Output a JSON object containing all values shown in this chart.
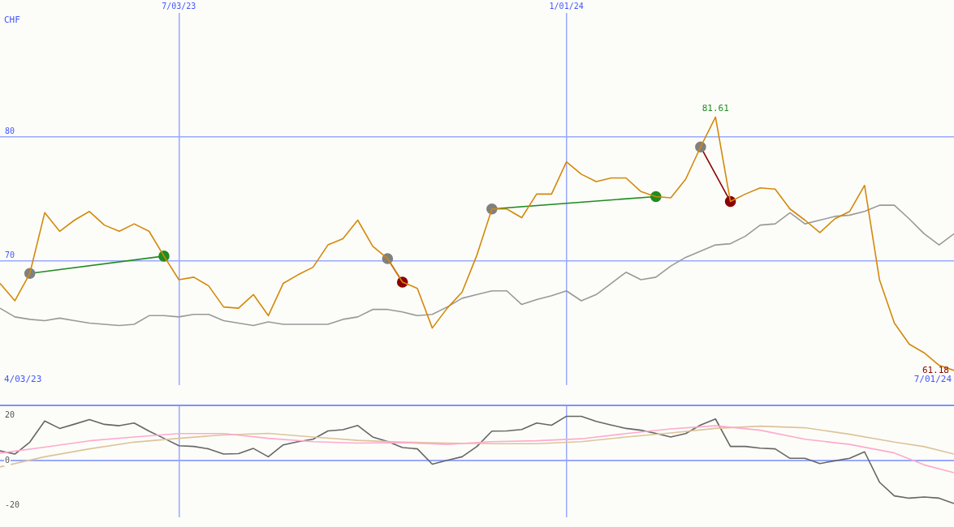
{
  "chart_data": [
    {
      "type": "line",
      "ylabel": "CHF",
      "x": [
        "2023-04-10",
        "2023-04-17",
        "2023-04-24",
        "2023-05-01",
        "2023-05-08",
        "2023-05-15",
        "2023-05-22",
        "2023-05-29",
        "2023-06-05",
        "2023-06-12",
        "2023-06-19",
        "2023-06-26",
        "2023-07-03",
        "2023-07-10",
        "2023-07-17",
        "2023-07-24",
        "2023-07-31",
        "2023-08-07",
        "2023-08-14",
        "2023-08-21",
        "2023-08-28",
        "2023-09-04",
        "2023-09-11",
        "2023-09-18",
        "2023-09-25",
        "2023-10-02",
        "2023-10-09",
        "2023-10-16",
        "2023-10-23",
        "2023-10-30",
        "2023-11-06",
        "2023-11-13",
        "2023-11-20",
        "2023-11-27",
        "2023-12-04",
        "2023-12-11",
        "2023-12-18",
        "2023-12-25",
        "2024-01-01",
        "2024-01-08",
        "2024-01-15",
        "2024-01-22",
        "2024-01-29",
        "2024-02-05",
        "2024-02-12",
        "2024-02-19",
        "2024-02-26",
        "2024-03-04",
        "2024-03-11",
        "2024-03-18",
        "2024-03-25",
        "2024-04-01",
        "2024-04-08",
        "2024-04-15",
        "2024-04-22",
        "2024-04-29",
        "2024-05-06",
        "2024-05-13",
        "2024-05-20",
        "2024-05-27",
        "2024-06-03",
        "2024-06-10",
        "2024-06-17",
        "2024-06-24",
        "2024-07-01"
      ],
      "series": [
        {
          "color": "#d4880a",
          "values": [
            68.2,
            66.8,
            69.0,
            73.9,
            72.4,
            73.3,
            74.0,
            72.9,
            72.4,
            73.0,
            72.4,
            70.4,
            68.5,
            68.7,
            68.0,
            66.3,
            66.2,
            67.3,
            65.6,
            68.2,
            68.9,
            69.5,
            71.3,
            71.8,
            73.3,
            71.2,
            70.2,
            68.3,
            67.8,
            64.6,
            66.2,
            67.5,
            70.5,
            74.2,
            74.2,
            73.5,
            75.4,
            75.4,
            78.0,
            77.0,
            76.4,
            76.7,
            76.7,
            75.6,
            75.2,
            75.1,
            76.6,
            79.2,
            81.61,
            74.8,
            75.4,
            75.9,
            75.8,
            74.2,
            73.3,
            72.3,
            73.4,
            74.0,
            76.1,
            68.5,
            65.0,
            63.3,
            62.6,
            61.6,
            61.18
          ]
        },
        {
          "color": "#999999",
          "values": [
            66.2,
            65.5,
            65.3,
            65.2,
            65.4,
            65.2,
            65.0,
            64.9,
            64.8,
            64.9,
            65.6,
            65.6,
            65.5,
            65.7,
            65.7,
            65.2,
            65.0,
            64.8,
            65.1,
            64.9,
            64.9,
            64.9,
            64.9,
            65.3,
            65.5,
            66.1,
            66.1,
            65.9,
            65.6,
            65.7,
            66.3,
            67.0,
            67.3,
            67.6,
            67.6,
            66.5,
            66.9,
            67.2,
            67.6,
            66.8,
            67.3,
            68.2,
            69.1,
            68.5,
            68.7,
            69.6,
            70.3,
            70.8,
            71.3,
            71.4,
            72.0,
            72.9,
            73.0,
            73.9,
            73.0,
            73.3,
            73.6,
            73.7,
            74.0,
            74.5,
            74.5,
            73.4,
            72.2,
            71.3,
            72.2
          ]
        },
        {
          "color": "#228b22",
          "marker": "circle",
          "x": [
            "2023-04-24",
            "2023-06-26"
          ],
          "values": [
            69.0,
            70.4
          ],
          "colors": [
            "#808080",
            "#228b22"
          ]
        },
        {
          "color": "#8b0000",
          "marker": "circle",
          "x": [
            "2023-10-09",
            "2023-10-16"
          ],
          "values": [
            70.2,
            68.3
          ],
          "colors": [
            "#808080",
            "#8b0000"
          ]
        },
        {
          "color": "#228b22",
          "marker": "circle",
          "x": [
            "2023-11-27",
            "2024-02-12"
          ],
          "values": [
            74.2,
            75.2
          ],
          "colors": [
            "#808080",
            "#228b22"
          ]
        },
        {
          "color": "#8b0000",
          "marker": "circle",
          "x": [
            "2024-03-04",
            "2024-03-18"
          ],
          "values": [
            79.2,
            74.8
          ],
          "colors": [
            "#808080",
            "#8b0000"
          ]
        }
      ],
      "xlim": [
        "2023-04-10",
        "2024-07-01"
      ],
      "xticks": [
        {
          "value": "2023-07-03",
          "label": "7/03/23"
        },
        {
          "value": "2024-01-01",
          "label": "1/01/24"
        }
      ],
      "ylim": [
        60,
        90
      ],
      "yticks": [
        70,
        80
      ],
      "grid": true,
      "legend": false,
      "marker": "none",
      "annotations": [
        {
          "text": "81.61",
          "x": "2024-03-11",
          "y": 81.61
        },
        {
          "text": "61.18",
          "x": "2024-07-01",
          "y": 61.18
        },
        "4/03/23",
        "7/01/24"
      ]
    },
    {
      "type": "line",
      "x": [
        "2023-04-10",
        "2023-04-17",
        "2023-04-24",
        "2023-05-01",
        "2023-05-08",
        "2023-05-15",
        "2023-05-22",
        "2023-05-29",
        "2023-06-05",
        "2023-06-12",
        "2023-06-19",
        "2023-06-26",
        "2023-07-03",
        "2023-07-10",
        "2023-07-17",
        "2023-07-24",
        "2023-07-31",
        "2023-08-07",
        "2023-08-14",
        "2023-08-21",
        "2023-08-28",
        "2023-09-04",
        "2023-09-11",
        "2023-09-18",
        "2023-09-25",
        "2023-10-02",
        "2023-10-09",
        "2023-10-16",
        "2023-10-23",
        "2023-10-30",
        "2023-11-06",
        "2023-11-13",
        "2023-11-20",
        "2023-11-27",
        "2023-12-04",
        "2023-12-11",
        "2023-12-18",
        "2023-12-25",
        "2024-01-01",
        "2024-01-08",
        "2024-01-15",
        "2024-01-22",
        "2024-01-29",
        "2024-02-05",
        "2024-02-12",
        "2024-02-19",
        "2024-02-26",
        "2024-03-04",
        "2024-03-11",
        "2024-03-18",
        "2024-03-25",
        "2024-04-01",
        "2024-04-08",
        "2024-04-15",
        "2024-04-22",
        "2024-04-29",
        "2024-05-06",
        "2024-05-13",
        "2024-05-20",
        "2024-05-27",
        "2024-06-03",
        "2024-06-10",
        "2024-06-17",
        "2024-06-24",
        "2024-07-01"
      ],
      "series": [
        {
          "color": "#ffaacc",
          "x": [
            "2023-04-10",
            "2023-05-01",
            "2023-05-22",
            "2023-06-12",
            "2023-07-03",
            "2023-07-24",
            "2023-08-14",
            "2023-09-04",
            "2023-09-25",
            "2023-10-16",
            "2023-11-06",
            "2023-11-27",
            "2023-12-18",
            "2024-01-08",
            "2024-01-29",
            "2024-02-19",
            "2024-03-11",
            "2024-04-01",
            "2024-04-22",
            "2024-05-13",
            "2024-06-03",
            "2024-06-17",
            "2024-07-01"
          ],
          "values": [
            3.3,
            6.0,
            8.8,
            10.5,
            12.0,
            12.0,
            9.9,
            8.4,
            7.8,
            8.0,
            7.2,
            8.4,
            8.8,
            9.7,
            12.0,
            14.1,
            15.5,
            13.5,
            9.5,
            7.2,
            3.4,
            -1.9,
            -5.4
          ]
        },
        {
          "color": "#ddc49a",
          "x": [
            "2023-04-10",
            "2023-05-01",
            "2023-05-22",
            "2023-06-12",
            "2023-07-03",
            "2023-07-24",
            "2023-08-14",
            "2023-09-04",
            "2023-09-25",
            "2023-10-16",
            "2023-11-06",
            "2023-11-27",
            "2023-12-18",
            "2024-01-08",
            "2024-01-29",
            "2024-02-19",
            "2024-03-11",
            "2024-04-01",
            "2024-04-22",
            "2024-05-13",
            "2024-06-03",
            "2024-06-17",
            "2024-07-01"
          ],
          "values": [
            -2.8,
            1.7,
            5.2,
            8.2,
            9.9,
            11.4,
            12.1,
            10.5,
            9.0,
            8.2,
            7.8,
            7.5,
            7.5,
            8.4,
            10.5,
            12.3,
            14.3,
            15.3,
            14.6,
            11.7,
            8.2,
            6.2,
            2.9
          ]
        },
        {
          "color": "#666666",
          "values": [
            4.3,
            2.9,
            8.2,
            17.6,
            14.3,
            16.2,
            18.2,
            16.1,
            15.5,
            16.7,
            13.1,
            9.9,
            6.6,
            6.3,
            5.2,
            2.9,
            3.1,
            5.4,
            1.7,
            7.0,
            8.4,
            9.5,
            13.2,
            13.7,
            15.6,
            10.5,
            8.5,
            5.8,
            5.2,
            -1.6,
            0.1,
            1.7,
            6.3,
            13.1,
            13.2,
            13.8,
            16.7,
            15.7,
            19.7,
            19.7,
            17.4,
            15.8,
            14.3,
            13.5,
            12.1,
            10.5,
            12.0,
            15.8,
            18.5,
            6.3,
            6.3,
            5.5,
            5.2,
            1.0,
            1.0,
            -1.3,
            -0.1,
            1.0,
            3.9,
            -9.6,
            -15.7,
            -16.7,
            -16.2,
            -16.7,
            -19.1
          ]
        }
      ],
      "xlim": [
        "2023-04-10",
        "2024-07-01"
      ],
      "xticks": [
        {
          "value": "2023-07-03",
          "label": null
        },
        {
          "value": "2024-01-01",
          "label": null
        }
      ],
      "ylim": [
        -25.2,
        24.9
      ],
      "yticks": [
        20,
        0,
        -20
      ],
      "grid": "x",
      "legend": false,
      "marker": "none",
      "tick_labels": "y",
      "ref_lines": [
        {
          "axis": "y",
          "value": 0,
          "color": "#99a8ff"
        }
      ]
    }
  ]
}
